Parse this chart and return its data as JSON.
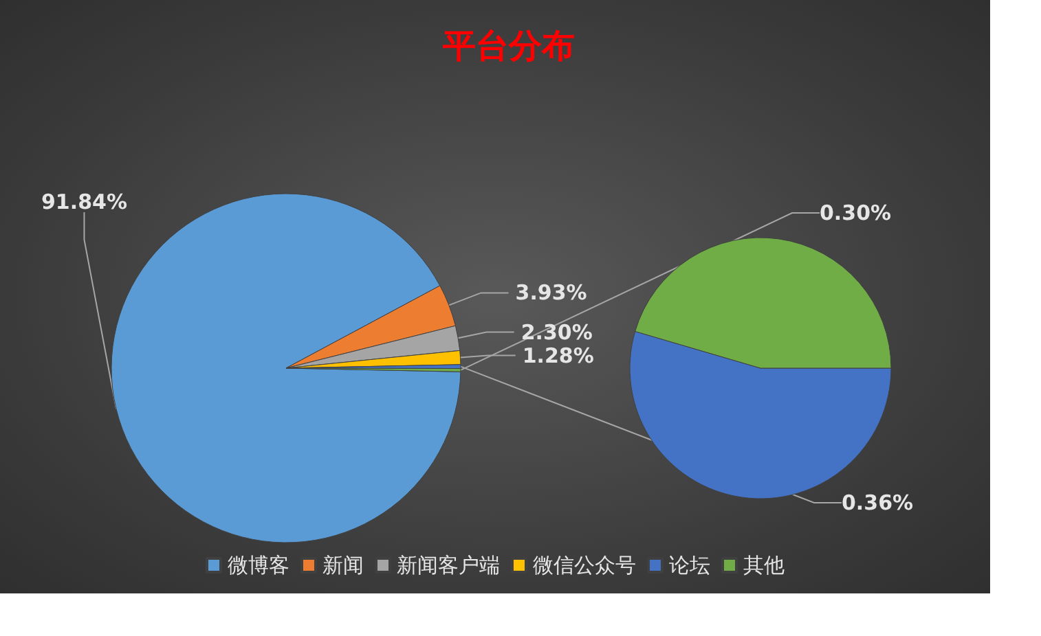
{
  "chart_data": {
    "type": "pie",
    "title": "平台分布",
    "categories": [
      "微博客",
      "新闻",
      "新闻客户端",
      "微信公众号",
      "论坛",
      "其他"
    ],
    "values": [
      91.84,
      3.93,
      2.3,
      1.28,
      0.36,
      0.3
    ],
    "colors": [
      "#5b9bd5",
      "#ed7d31",
      "#a5a5a5",
      "#ffc000",
      "#4472c4",
      "#70ad47"
    ],
    "value_labels": [
      "91.84%",
      "3.93%",
      "2.30%",
      "1.28%",
      "0.36%",
      "0.30%"
    ],
    "legend": "bottom"
  }
}
